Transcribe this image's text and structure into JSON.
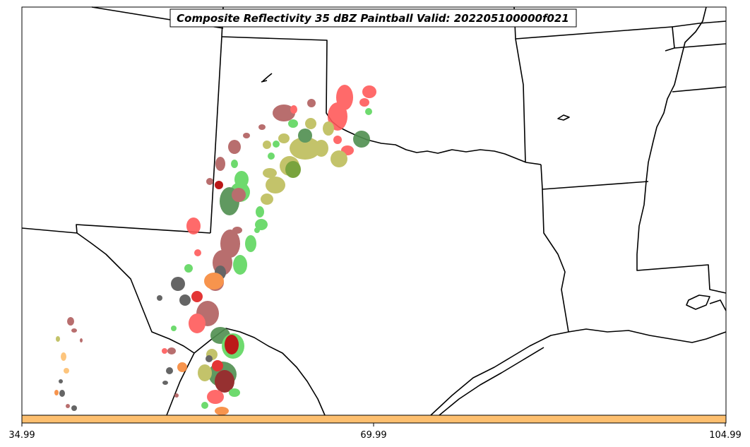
{
  "title": "Composite Reflectivity 35 dBZ Paintball Valid: 202205100000f021",
  "colorbar": {
    "color": "#fdbf6f",
    "ticks": [
      "34.99",
      "69.99",
      "104.99"
    ]
  },
  "colors": {
    "border": "#000000",
    "brown": "#b15f5f",
    "red": "#ff5a5a",
    "dark_red": "#b40000",
    "green": "#5fd75f",
    "dark_green": "#4f8f4f",
    "olive": "#bdbd5a",
    "orange": "#f7893a",
    "light_orange": "#fdbf6f",
    "gray": "#555555"
  }
}
